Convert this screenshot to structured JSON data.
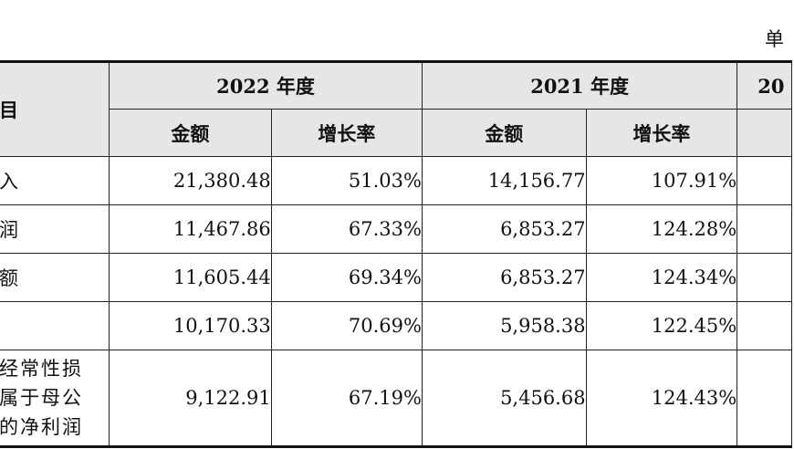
{
  "unit_label": "单",
  "header": {
    "item_col": "目",
    "years": [
      {
        "label": "2022 年度",
        "sub": [
          "金额",
          "增长率"
        ]
      },
      {
        "label": "2021 年度",
        "sub": [
          "金额",
          "增长率"
        ]
      },
      {
        "label": "20",
        "sub": [
          ""
        ]
      }
    ]
  },
  "rows": [
    {
      "label_lines": [
        "入"
      ],
      "values": [
        "21,380.48",
        "51.03%",
        "14,156.77",
        "107.91%"
      ]
    },
    {
      "label_lines": [
        "润"
      ],
      "values": [
        "11,467.86",
        "67.33%",
        "6,853.27",
        "124.28%"
      ]
    },
    {
      "label_lines": [
        "额"
      ],
      "values": [
        "11,605.44",
        "69.34%",
        "6,853.27",
        "124.34%"
      ]
    },
    {
      "label_lines": [
        ""
      ],
      "values": [
        "10,170.33",
        "70.69%",
        "5,958.38",
        "122.45%"
      ]
    },
    {
      "label_lines": [
        "经常性损",
        "属于母公",
        "的净利润"
      ],
      "values": [
        "9,122.91",
        "67.19%",
        "5,456.68",
        "124.43%"
      ]
    }
  ]
}
